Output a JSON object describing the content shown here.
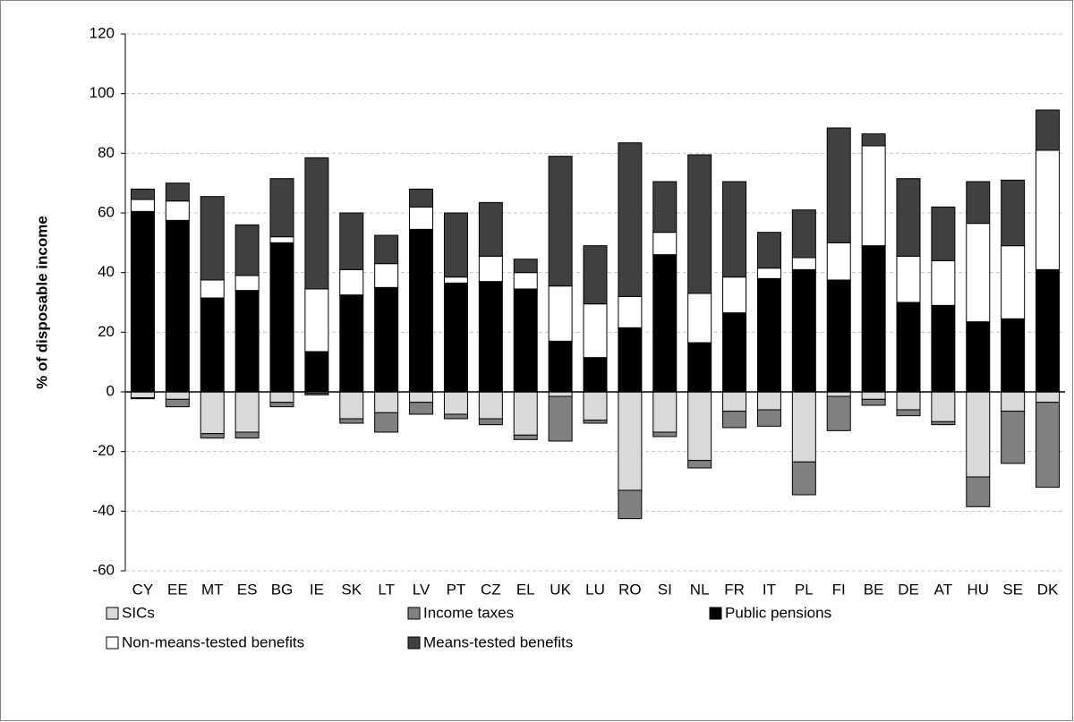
{
  "chart_data": {
    "type": "stacked_bar",
    "y_label": "% of disposable income",
    "categories": [
      "CY",
      "EE",
      "MT",
      "ES",
      "BG",
      "IE",
      "SK",
      "LT",
      "LV",
      "PT",
      "CZ",
      "EL",
      "UK",
      "LU",
      "RO",
      "SI",
      "NL",
      "FR",
      "IT",
      "PL",
      "FI",
      "BE",
      "DE",
      "AT",
      "HU",
      "SE",
      "DK"
    ],
    "series": [
      {
        "name": "SICs",
        "color": "#d9d9d9",
        "values": [
          -2,
          -2.5,
          -14,
          -13.5,
          -3.5,
          -0.5,
          -9,
          -7,
          -3.5,
          -7.5,
          -9,
          -14.5,
          -1.5,
          -9.5,
          -33,
          -13.5,
          -23,
          -6.5,
          -6,
          -23.5,
          -1.5,
          -2.5,
          -6,
          -10,
          -28.5,
          -6.5,
          -3.5
        ]
      },
      {
        "name": "Income taxes",
        "color": "#808080",
        "values": [
          -0.3,
          -2.5,
          -1.5,
          -2,
          -1.5,
          -0.5,
          -1.5,
          -6.5,
          -4,
          -1.5,
          -2,
          -1.5,
          -15,
          -1,
          -9.5,
          -1.5,
          -2.5,
          -5.5,
          -5.5,
          -11,
          -11.5,
          -2,
          -2,
          -1,
          -10,
          -17.5,
          -28.5
        ]
      },
      {
        "name": "Public pensions",
        "color": "#000000",
        "values": [
          60.5,
          57.5,
          31.5,
          34,
          50,
          13.5,
          32.5,
          35,
          54.5,
          36.5,
          37,
          34.5,
          17,
          11.5,
          21.5,
          46,
          16.5,
          26.5,
          38,
          41,
          37.5,
          49,
          30,
          29,
          23.5,
          24.5,
          41
        ]
      },
      {
        "name": "Non-means-tested benefits",
        "color": "#ffffff",
        "values": [
          4,
          6.5,
          6,
          5,
          2,
          21,
          8.5,
          8,
          7.5,
          2,
          8.5,
          5.5,
          18.5,
          18,
          10.5,
          7.5,
          16.5,
          12,
          3.5,
          4,
          12.5,
          33.5,
          15.5,
          15,
          33,
          24.5,
          40
        ]
      },
      {
        "name": "Means-tested benefits",
        "color": "#404040",
        "values": [
          3.5,
          6,
          28,
          17,
          19.5,
          44,
          19,
          9.5,
          6,
          21.5,
          18,
          4.5,
          43.5,
          19.5,
          51.5,
          17,
          46.5,
          32,
          12,
          16,
          38.5,
          4,
          26,
          18,
          14,
          22,
          13.5
        ]
      }
    ],
    "ylim": [
      -60,
      120
    ],
    "yticks": [
      -60,
      -40,
      -20,
      0,
      20,
      40,
      60,
      80,
      100,
      120
    ],
    "grid": true
  }
}
